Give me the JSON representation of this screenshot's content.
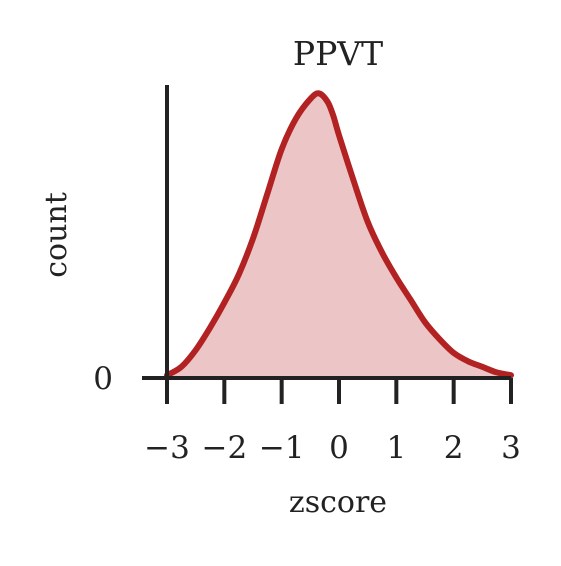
{
  "chart_data": {
    "type": "area",
    "title": "PPVT",
    "xlabel": "zscore",
    "ylabel": "count",
    "xlim": [
      -3,
      3
    ],
    "ylim": [
      0,
      1.05
    ],
    "x_ticks": [
      -3,
      -2,
      -1,
      0,
      1,
      2,
      3
    ],
    "x_tick_labels": [
      "−3",
      "−2",
      "−1",
      "0",
      "1",
      "2",
      "3"
    ],
    "y_ticks": [
      0
    ],
    "y_tick_labels": [
      "0"
    ],
    "grid": false,
    "series": [
      {
        "line_color": "#b22222",
        "fill_color": "#ecc6c7",
        "x": [
          -3.0,
          -2.75,
          -2.5,
          -2.25,
          -2.0,
          -1.75,
          -1.5,
          -1.25,
          -1.0,
          -0.75,
          -0.5,
          -0.35,
          -0.2,
          -0.1,
          0.0,
          0.25,
          0.5,
          0.75,
          1.0,
          1.25,
          1.5,
          1.75,
          2.0,
          2.25,
          2.5,
          2.75,
          3.0
        ],
        "y": [
          0.01,
          0.04,
          0.1,
          0.18,
          0.27,
          0.37,
          0.5,
          0.66,
          0.82,
          0.93,
          1.0,
          1.02,
          0.99,
          0.94,
          0.87,
          0.71,
          0.56,
          0.45,
          0.36,
          0.28,
          0.2,
          0.14,
          0.09,
          0.06,
          0.04,
          0.02,
          0.01
        ]
      }
    ]
  }
}
